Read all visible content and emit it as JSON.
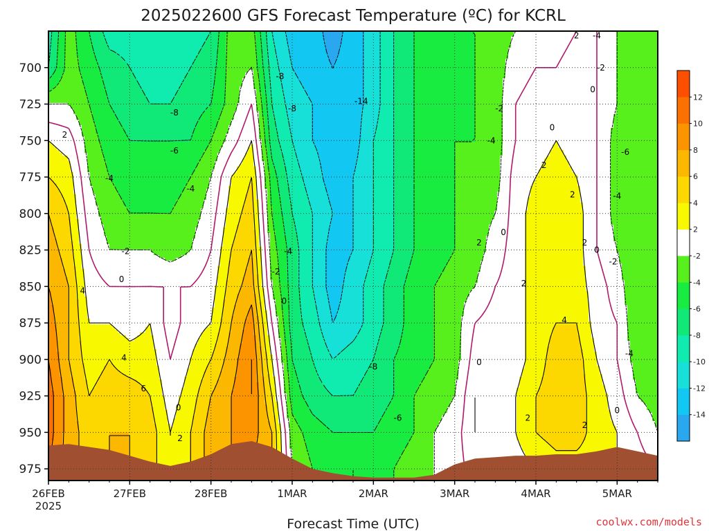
{
  "chart_data": {
    "type": "heatmap",
    "title": "2025022600 GFS Forecast Temperature (ºC) for KCRL",
    "xlabel": "Forecast Time (UTC)",
    "ylabel": "",
    "credit": "coolwx.com/models",
    "x_ticks": [
      {
        "label": "26FEB",
        "sub": "2025",
        "day": 0
      },
      {
        "label": "27FEB",
        "sub": "",
        "day": 1
      },
      {
        "label": "28FEB",
        "sub": "",
        "day": 2
      },
      {
        "label": "1MAR",
        "sub": "",
        "day": 3
      },
      {
        "label": "2MAR",
        "sub": "",
        "day": 4
      },
      {
        "label": "3MAR",
        "sub": "",
        "day": 5
      },
      {
        "label": "4MAR",
        "sub": "",
        "day": 6
      },
      {
        "label": "5MAR",
        "sub": "",
        "day": 7
      }
    ],
    "x_range_days": [
      0,
      7.5
    ],
    "y_ticks": [
      700,
      725,
      750,
      775,
      800,
      825,
      850,
      875,
      900,
      925,
      950,
      975
    ],
    "y_range_hpa": [
      675,
      983
    ],
    "grid": true,
    "colorbar": {
      "levels": [
        -16,
        -14,
        -12,
        -10,
        -8,
        -6,
        -4,
        -2,
        2,
        4,
        6,
        8,
        10,
        12,
        14
      ],
      "tick_labels": [
        "-14",
        "-12",
        "-10",
        "-8",
        "-6",
        "-4",
        "-2",
        "2",
        "4",
        "6",
        "8",
        "10",
        "12"
      ],
      "colors": [
        "#29a8f0",
        "#12c8f2",
        "#16e0d8",
        "#10ecb0",
        "#10e878",
        "#18ec40",
        "#58f01c",
        "#ffffff",
        "#f8f800",
        "#fcd800",
        "#fcb800",
        "#fc9400",
        "#fc7000",
        "#fc5000"
      ]
    },
    "temperature_grid": {
      "times_days": [
        0,
        0.25,
        0.5,
        0.75,
        1,
        1.25,
        1.5,
        1.75,
        2,
        2.25,
        2.5,
        2.75,
        3,
        3.25,
        3.5,
        3.75,
        4,
        4.25,
        4.5,
        4.75,
        5,
        5.25,
        5.5,
        5.75,
        6,
        6.25,
        6.5,
        6.75,
        7,
        7.25,
        7.5
      ],
      "pressures_hpa": [
        675,
        700,
        725,
        750,
        775,
        800,
        825,
        850,
        875,
        900,
        925,
        950,
        975
      ],
      "values_c": [
        [
          -9,
          -3,
          -6,
          -9,
          -9,
          -10,
          -10,
          -9,
          -8,
          -3,
          -3,
          -10,
          -13,
          -13,
          -15,
          -13,
          -11,
          -8,
          -6,
          -4,
          -4,
          -4,
          -3,
          -2,
          -1,
          -1,
          0,
          0,
          -2,
          -4,
          -4
        ],
        [
          -8,
          -3,
          -5,
          -7,
          -8,
          -9,
          -9,
          -8,
          -7,
          -3,
          -2,
          -9,
          -12,
          -13,
          -14,
          -13,
          -11,
          -8,
          -6,
          -5,
          -5,
          -4,
          -3,
          -1,
          0,
          0,
          1,
          0,
          -2,
          -4,
          -4
        ],
        [
          -2,
          -2,
          -4,
          -6,
          -7,
          -8,
          -8,
          -7,
          -6,
          -3,
          0,
          -8,
          -11,
          -12,
          -14,
          -13,
          -11,
          -8,
          -6,
          -5,
          -5,
          -4,
          -3,
          0,
          1,
          1,
          1,
          0,
          -2,
          -4,
          -4
        ],
        [
          2,
          1,
          -3,
          -5,
          -6,
          -6,
          -6,
          -6,
          -4,
          -1,
          2,
          -7,
          -10,
          -12,
          -13,
          -13,
          -10,
          -8,
          -6,
          -5,
          -4,
          -4,
          -3,
          0,
          1,
          2,
          1,
          0,
          -3,
          -4,
          -4
        ],
        [
          4,
          3,
          -2,
          -4,
          -5,
          -5,
          -5,
          -4,
          -2,
          2,
          4,
          -5,
          -9,
          -11,
          -13,
          -12,
          -10,
          -8,
          -6,
          -5,
          -4,
          -4,
          -3,
          1,
          2,
          3,
          2,
          0,
          -3,
          -4,
          -4
        ],
        [
          6,
          4,
          -1,
          -3,
          -4,
          -4,
          -4,
          -3,
          -1,
          3,
          5,
          -4,
          -8,
          -10,
          -12,
          -12,
          -10,
          -8,
          -6,
          -5,
          -4,
          -3,
          -2,
          1,
          3,
          3,
          3,
          0,
          -3,
          -4,
          -4
        ],
        [
          7,
          5,
          0,
          -2,
          -2,
          -2,
          -3,
          -2,
          0,
          4,
          6,
          -3,
          -7,
          -10,
          -13,
          -12,
          -10,
          -8,
          -6,
          -5,
          -4,
          -3,
          -1,
          1,
          3,
          3,
          3,
          0,
          -2,
          -4,
          -4
        ],
        [
          8,
          6,
          1,
          0,
          0,
          0,
          0,
          0,
          1,
          5,
          7,
          -2,
          -7,
          -10,
          -13,
          -11,
          -9,
          -7,
          -5,
          -4,
          -3,
          -2,
          0,
          1,
          3,
          3,
          3,
          1,
          -1,
          -4,
          -4
        ],
        [
          9,
          6,
          2,
          2,
          1,
          2,
          -1,
          1,
          2,
          6,
          9,
          0,
          -7,
          -9,
          -12,
          -11,
          -9,
          -7,
          -5,
          -4,
          -3,
          0,
          1,
          1,
          3,
          4,
          4,
          1,
          0,
          -4,
          -4
        ],
        [
          10,
          6,
          3,
          4,
          3,
          3,
          0,
          2,
          4,
          7,
          10,
          2,
          -6,
          -8,
          -10,
          -9,
          -8,
          -6,
          -5,
          -4,
          -3,
          1,
          1,
          1,
          3,
          5,
          5,
          2,
          0,
          -3,
          -4
        ],
        [
          11,
          7,
          4,
          5,
          5,
          4,
          1,
          3,
          6,
          8,
          10,
          4,
          -5,
          -7,
          -8,
          -8,
          -7,
          -6,
          -4,
          -3,
          -2,
          2,
          1,
          2,
          4,
          5,
          5,
          3,
          1,
          -2,
          -3
        ],
        [
          11,
          7,
          5,
          6,
          6,
          5,
          2,
          4,
          7,
          8,
          9,
          6,
          -3,
          -5,
          -6,
          -6,
          -6,
          -5,
          -4,
          -2,
          -1,
          2,
          1,
          2,
          4,
          5,
          5,
          3,
          2,
          0,
          -2
        ],
        [
          10,
          7,
          5,
          6,
          6,
          5,
          2,
          4,
          7,
          8,
          8,
          6,
          -2,
          -4,
          -5,
          -4,
          -5,
          -4,
          -3,
          -2,
          -1,
          1,
          1,
          1,
          2,
          3,
          3,
          3,
          2,
          1,
          0
        ]
      ]
    },
    "ground_surface_hpa": [
      959,
      958,
      960,
      962,
      966,
      970,
      973,
      970,
      965,
      958,
      956,
      960,
      968,
      975,
      978,
      980,
      981,
      981,
      981,
      979,
      972,
      968,
      967,
      966,
      966,
      965,
      965,
      963,
      960,
      963,
      966
    ],
    "contour_labels": [
      {
        "text": "-8",
        "day": 2.85,
        "p": 706
      },
      {
        "text": "-8",
        "day": 3.0,
        "p": 728
      },
      {
        "text": "-8",
        "day": 1.55,
        "p": 731
      },
      {
        "text": "-14",
        "day": 3.85,
        "p": 723
      },
      {
        "text": "-6",
        "day": 1.55,
        "p": 757
      },
      {
        "text": "-4",
        "day": 0.75,
        "p": 776
      },
      {
        "text": "-4",
        "day": 1.75,
        "p": 783
      },
      {
        "text": "-2",
        "day": 0.95,
        "p": 826
      },
      {
        "text": "0",
        "day": 0.9,
        "p": 845
      },
      {
        "text": "4",
        "day": 0.42,
        "p": 853
      },
      {
        "text": "4",
        "day": 0.93,
        "p": 899
      },
      {
        "text": "6",
        "day": 1.17,
        "p": 920
      },
      {
        "text": "0",
        "day": 1.6,
        "p": 933
      },
      {
        "text": "2",
        "day": 1.62,
        "p": 954
      },
      {
        "text": "2",
        "day": 0.2,
        "p": 746
      },
      {
        "text": "-4",
        "day": 2.95,
        "p": 826
      },
      {
        "text": "-2",
        "day": 2.8,
        "p": 840
      },
      {
        "text": "0",
        "day": 2.9,
        "p": 860
      },
      {
        "text": "-8",
        "day": 4.0,
        "p": 905
      },
      {
        "text": "-6",
        "day": 4.3,
        "p": 940
      },
      {
        "text": "0",
        "day": 5.3,
        "p": 902
      },
      {
        "text": "2",
        "day": 5.3,
        "p": 820
      },
      {
        "text": "-2",
        "day": 5.55,
        "p": 728
      },
      {
        "text": "-4",
        "day": 5.45,
        "p": 750
      },
      {
        "text": "2",
        "day": 6.5,
        "p": 678
      },
      {
        "text": "-4",
        "day": 6.75,
        "p": 678
      },
      {
        "text": "0",
        "day": 6.2,
        "p": 741
      },
      {
        "text": "2",
        "day": 6.1,
        "p": 767
      },
      {
        "text": "2",
        "day": 6.45,
        "p": 787
      },
      {
        "text": "0",
        "day": 5.6,
        "p": 813
      },
      {
        "text": "2",
        "day": 5.85,
        "p": 848
      },
      {
        "text": "2",
        "day": 6.6,
        "p": 820
      },
      {
        "text": "0",
        "day": 6.75,
        "p": 825
      },
      {
        "text": "4",
        "day": 6.35,
        "p": 873
      },
      {
        "text": "2",
        "day": 5.9,
        "p": 940
      },
      {
        "text": "2",
        "day": 6.6,
        "p": 945
      },
      {
        "text": "0",
        "day": 7.0,
        "p": 935
      },
      {
        "text": "-2",
        "day": 6.8,
        "p": 700
      },
      {
        "text": "0",
        "day": 6.7,
        "p": 715
      },
      {
        "text": "-6",
        "day": 7.1,
        "p": 758
      },
      {
        "text": "-4",
        "day": 7.0,
        "p": 788
      },
      {
        "text": "-2",
        "day": 6.95,
        "p": 833
      },
      {
        "text": "-4",
        "day": 7.15,
        "p": 896
      }
    ]
  }
}
